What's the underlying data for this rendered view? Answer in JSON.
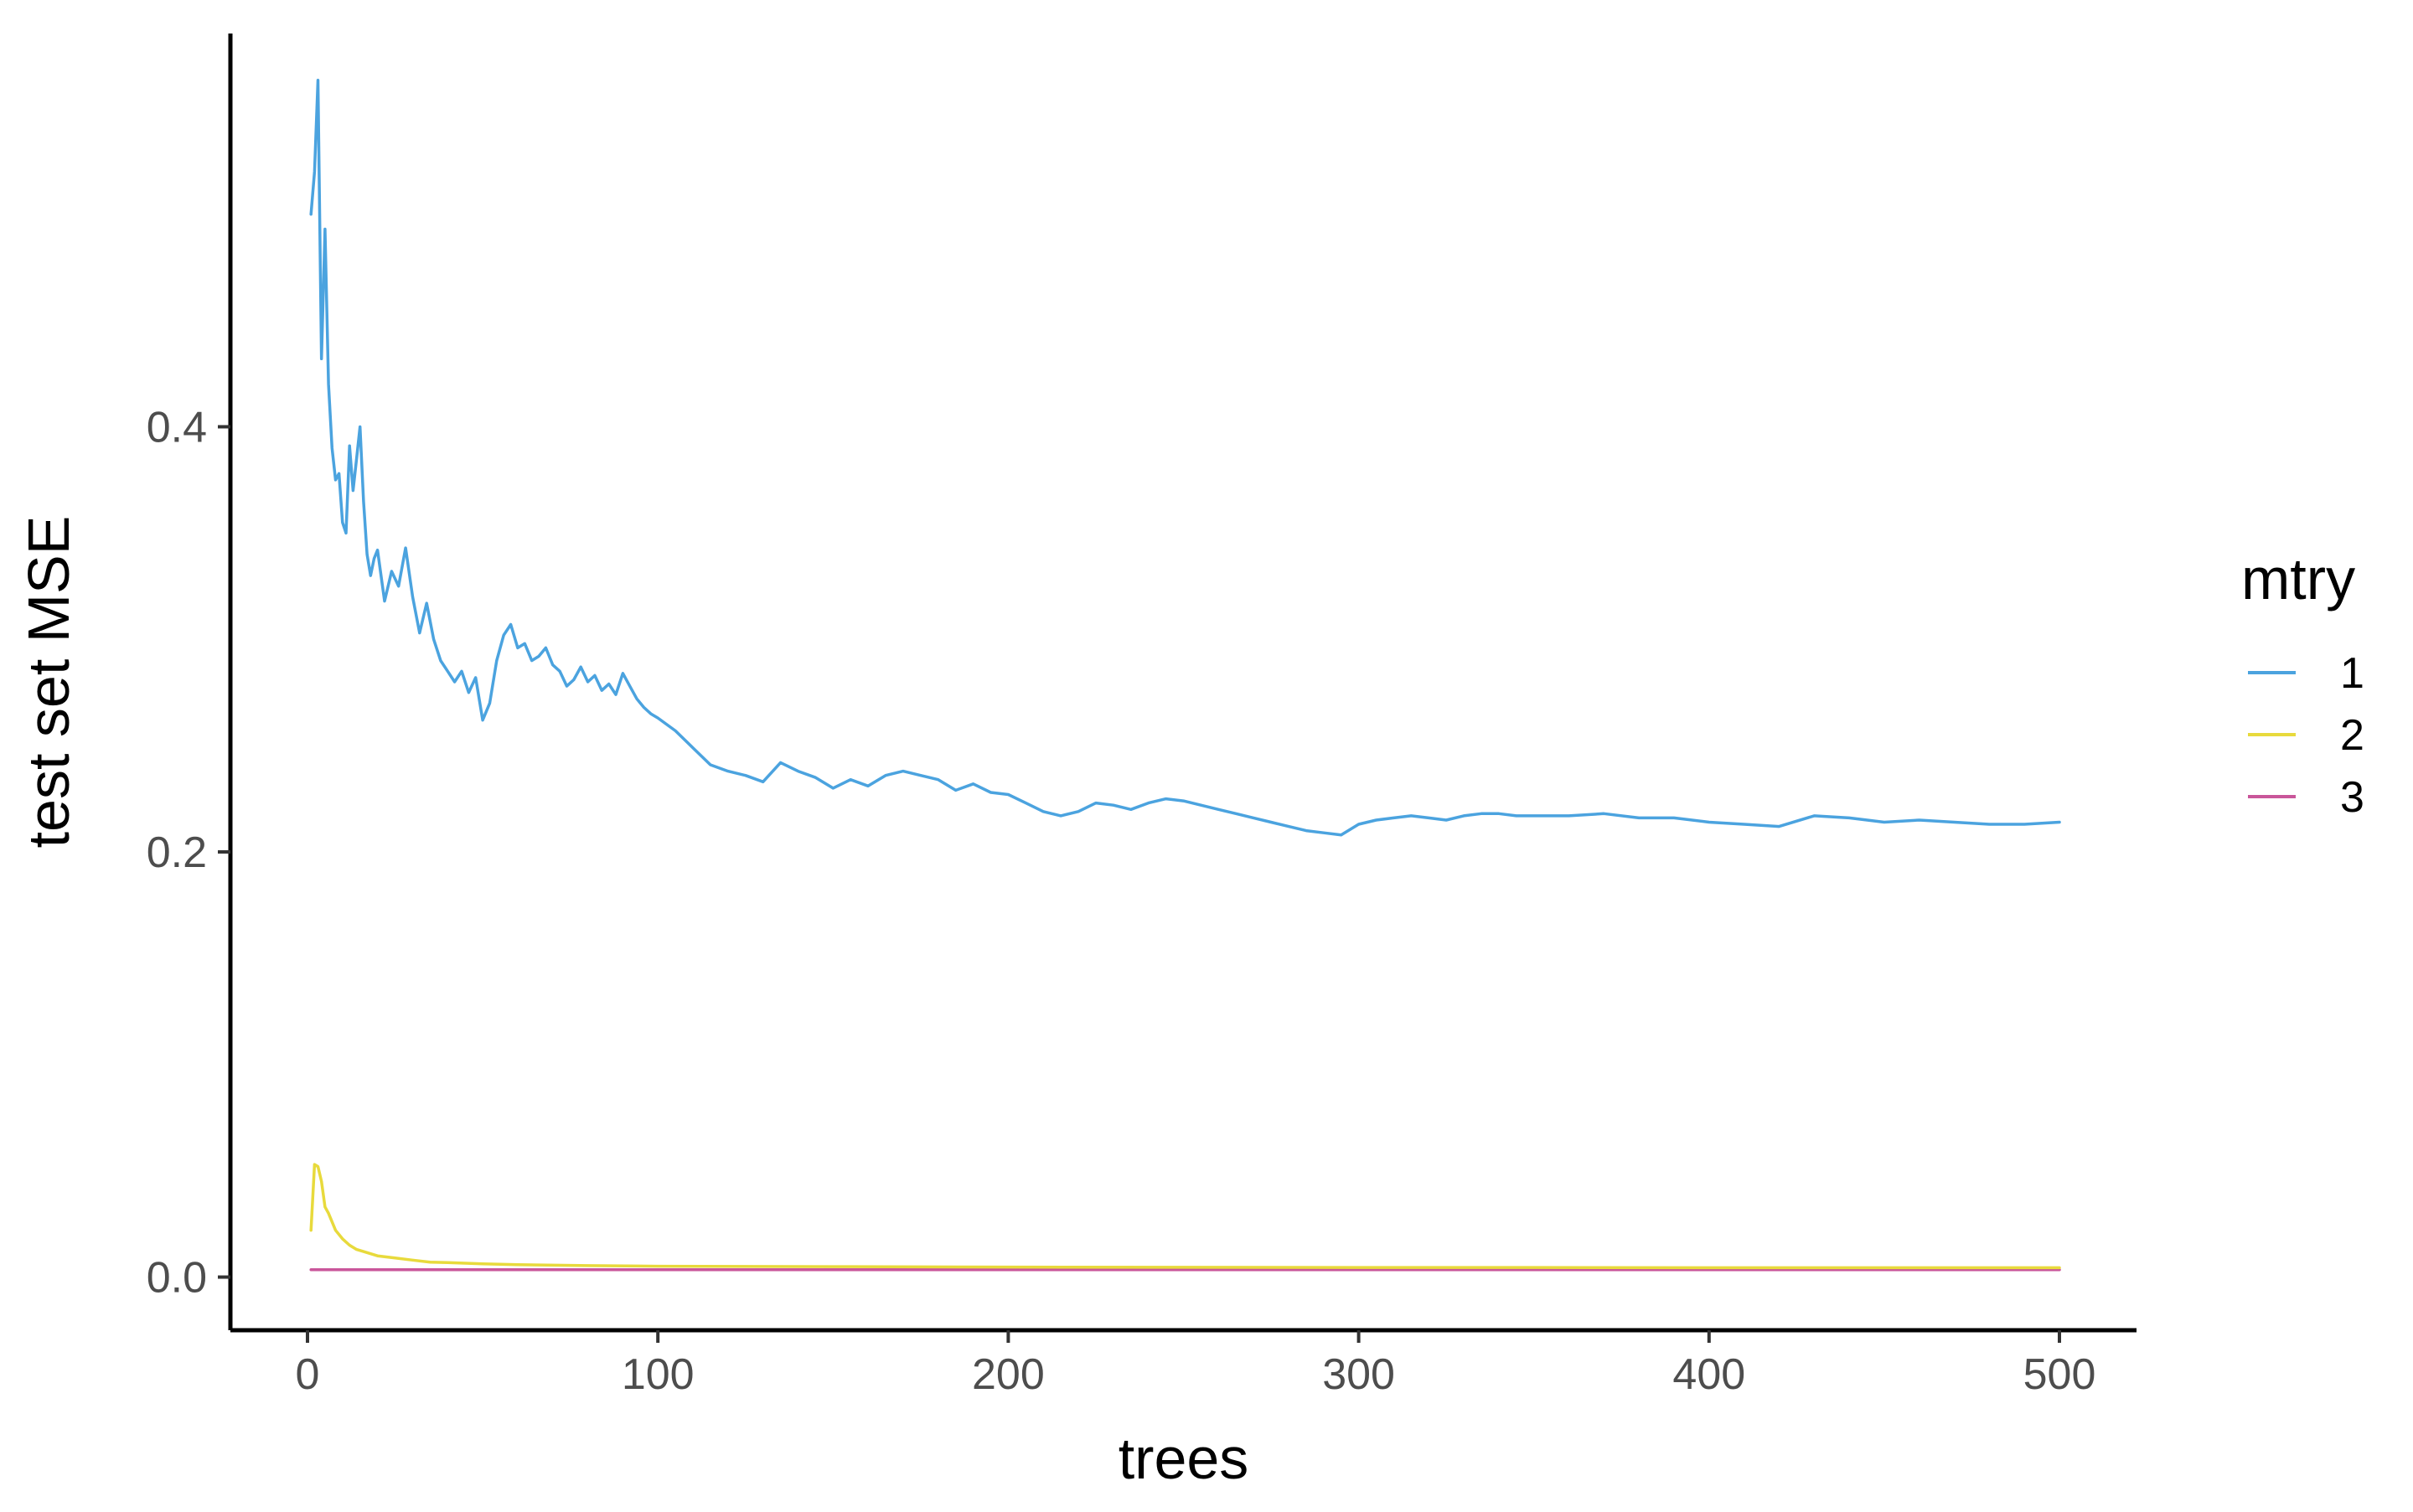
{
  "chart_data": {
    "type": "line",
    "title": "",
    "xlabel": "trees",
    "ylabel": "test set MSE",
    "xlim": [
      -22,
      522
    ],
    "ylim": [
      -0.025,
      0.585
    ],
    "x_ticks": [
      0,
      100,
      200,
      300,
      400,
      500
    ],
    "y_ticks": [
      0.0,
      0.2,
      0.4
    ],
    "x_tick_labels": [
      "0",
      "100",
      "200",
      "300",
      "400",
      "500"
    ],
    "y_tick_labels": [
      "0.0",
      "0.2",
      "0.4"
    ],
    "grid": false,
    "legend": {
      "title": "mtry",
      "position": "right"
    },
    "series": [
      {
        "name": "1",
        "color": "#4BA3DF",
        "x": [
          1,
          2,
          3,
          4,
          5,
          6,
          7,
          8,
          9,
          10,
          11,
          12,
          13,
          14,
          15,
          16,
          17,
          18,
          19,
          20,
          22,
          24,
          26,
          28,
          30,
          32,
          34,
          36,
          38,
          40,
          42,
          44,
          46,
          48,
          50,
          52,
          54,
          56,
          58,
          60,
          62,
          64,
          66,
          68,
          70,
          72,
          74,
          76,
          78,
          80,
          82,
          84,
          86,
          88,
          90,
          92,
          94,
          96,
          98,
          100,
          105,
          110,
          115,
          120,
          125,
          130,
          135,
          140,
          145,
          150,
          155,
          160,
          165,
          170,
          175,
          180,
          185,
          190,
          195,
          200,
          205,
          210,
          215,
          220,
          225,
          230,
          235,
          240,
          245,
          250,
          255,
          260,
          265,
          270,
          275,
          280,
          285,
          290,
          295,
          300,
          305,
          310,
          315,
          320,
          325,
          330,
          335,
          340,
          345,
          350,
          360,
          370,
          380,
          390,
          400,
          410,
          420,
          430,
          440,
          450,
          460,
          470,
          480,
          490,
          500
        ],
        "y": [
          0.5,
          0.52,
          0.563,
          0.432,
          0.493,
          0.42,
          0.39,
          0.375,
          0.378,
          0.355,
          0.35,
          0.391,
          0.37,
          0.385,
          0.4,
          0.365,
          0.34,
          0.33,
          0.338,
          0.342,
          0.318,
          0.332,
          0.325,
          0.343,
          0.32,
          0.303,
          0.317,
          0.3,
          0.29,
          0.285,
          0.28,
          0.285,
          0.275,
          0.282,
          0.262,
          0.27,
          0.29,
          0.302,
          0.307,
          0.296,
          0.298,
          0.29,
          0.292,
          0.296,
          0.288,
          0.285,
          0.278,
          0.281,
          0.287,
          0.28,
          0.283,
          0.276,
          0.279,
          0.274,
          0.284,
          0.278,
          0.272,
          0.268,
          0.265,
          0.263,
          0.257,
          0.249,
          0.241,
          0.238,
          0.236,
          0.233,
          0.242,
          0.238,
          0.235,
          0.23,
          0.234,
          0.231,
          0.236,
          0.238,
          0.236,
          0.234,
          0.229,
          0.232,
          0.228,
          0.227,
          0.223,
          0.219,
          0.217,
          0.219,
          0.223,
          0.222,
          0.22,
          0.223,
          0.225,
          0.224,
          0.222,
          0.22,
          0.218,
          0.216,
          0.214,
          0.212,
          0.21,
          0.209,
          0.208,
          0.213,
          0.215,
          0.216,
          0.217,
          0.216,
          0.215,
          0.217,
          0.218,
          0.218,
          0.217,
          0.217,
          0.217,
          0.218,
          0.216,
          0.216,
          0.214,
          0.213,
          0.212,
          0.217,
          0.216,
          0.214,
          0.215,
          0.214,
          0.213,
          0.213,
          0.214
        ]
      },
      {
        "name": "2",
        "color": "#E8DA3C",
        "x": [
          1,
          2,
          3,
          4,
          5,
          6,
          7,
          8,
          10,
          12,
          14,
          16,
          20,
          25,
          30,
          35,
          40,
          50,
          60,
          80,
          100,
          150,
          200,
          250,
          300,
          350,
          400,
          450,
          500
        ],
        "y": [
          0.022,
          0.053,
          0.052,
          0.045,
          0.033,
          0.03,
          0.026,
          0.022,
          0.018,
          0.015,
          0.013,
          0.012,
          0.01,
          0.009,
          0.008,
          0.007,
          0.0068,
          0.0062,
          0.0058,
          0.0054,
          0.0051,
          0.0049,
          0.0047,
          0.0046,
          0.0045,
          0.0045,
          0.0044,
          0.0044,
          0.0044
        ]
      },
      {
        "name": "3",
        "color": "#C9569A",
        "x": [
          1,
          500
        ],
        "y": [
          0.0035,
          0.0035
        ]
      }
    ]
  }
}
